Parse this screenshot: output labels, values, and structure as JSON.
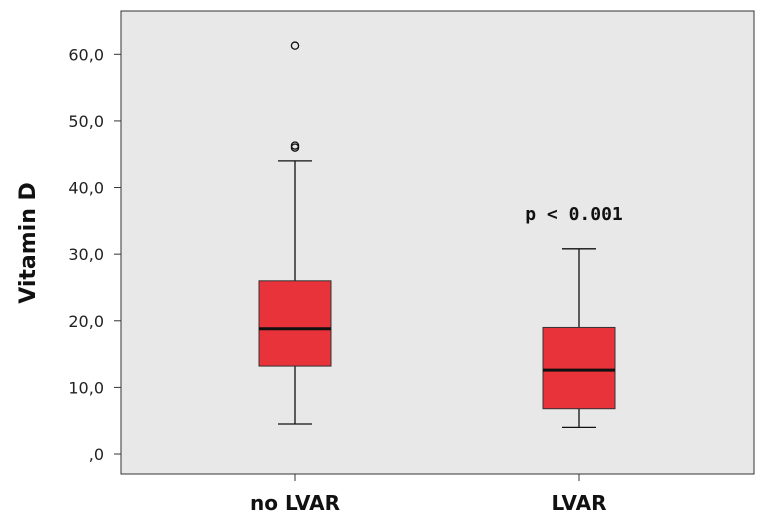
{
  "chart_data": {
    "type": "boxplot",
    "title": "",
    "xlabel": "",
    "ylabel": "Vitamin D",
    "ylim": [
      -3.0,
      66.5
    ],
    "y_ticks": [
      {
        "value": 0,
        "label": ",0"
      },
      {
        "value": 10,
        "label": "10,0"
      },
      {
        "value": 20,
        "label": "20,0"
      },
      {
        "value": 30,
        "label": "30,0"
      },
      {
        "value": 40,
        "label": "40,0"
      },
      {
        "value": 50,
        "label": "50,0"
      },
      {
        "value": 60,
        "label": "60,0"
      }
    ],
    "categories": [
      "no LVAR",
      "LVAR"
    ],
    "boxes": [
      {
        "category": "no LVAR",
        "whisker_low": 4.5,
        "q1": 13.2,
        "median": 18.8,
        "q3": 26.0,
        "whisker_high": 44.0,
        "outliers": [
          61.3,
          46.3,
          46.0
        ]
      },
      {
        "category": "LVAR",
        "whisker_low": 4.0,
        "q1": 6.8,
        "median": 12.6,
        "q3": 19.0,
        "whisker_high": 30.8,
        "outliers": []
      }
    ],
    "annotations": [
      {
        "text": "p < 0.001",
        "x_category": "LVAR",
        "y": 36.0
      }
    ],
    "colors": {
      "box_fill": "#e8333a",
      "box_stroke": "#333333",
      "median": "#111111",
      "plot_bg": "#e8e8e8"
    }
  }
}
